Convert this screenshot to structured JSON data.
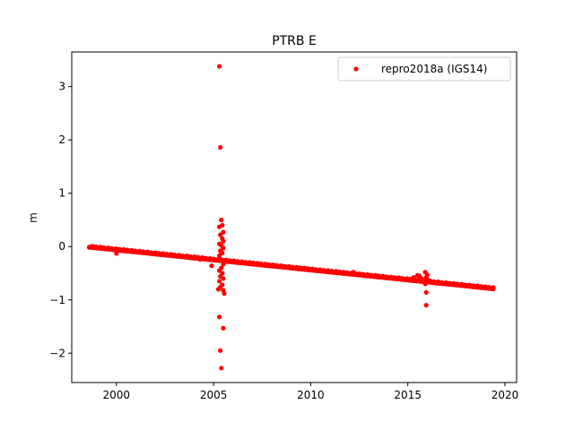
{
  "chart_data": {
    "type": "scatter",
    "title": "PTRB E",
    "xlabel": "",
    "ylabel": "m",
    "xlim": [
      1997.7,
      2020.6
    ],
    "ylim": [
      -2.55,
      3.65
    ],
    "xticks": [
      2000,
      2005,
      2010,
      2015,
      2020
    ],
    "yticks": [
      -2,
      -1,
      0,
      1,
      2,
      3
    ],
    "xtick_labels": [
      "2000",
      "2005",
      "2010",
      "2015",
      "2020"
    ],
    "ytick_labels": [
      "−2",
      "−1",
      "0",
      "1",
      "2",
      "3"
    ],
    "grid": false,
    "legend_position": "top-right",
    "series": [
      {
        "name": "repro2018a (IGS14)",
        "color": "#ff0000",
        "marker": "circle",
        "trend": {
          "x_start": 1998.6,
          "x_end": 2019.4,
          "y_start": 0.0,
          "y_end": -0.78
        },
        "points": [
          {
            "x": 2000.0,
            "y": -0.13
          },
          {
            "x": 2004.3,
            "y": -0.24
          },
          {
            "x": 2004.9,
            "y": -0.36
          },
          {
            "x": 2005.3,
            "y": 3.38
          },
          {
            "x": 2005.35,
            "y": 1.86
          },
          {
            "x": 2005.4,
            "y": 0.5
          },
          {
            "x": 2005.45,
            "y": 0.4
          },
          {
            "x": 2005.3,
            "y": 0.37
          },
          {
            "x": 2005.5,
            "y": 0.27
          },
          {
            "x": 2005.35,
            "y": 0.22
          },
          {
            "x": 2005.45,
            "y": 0.15
          },
          {
            "x": 2005.5,
            "y": 0.1
          },
          {
            "x": 2005.3,
            "y": 0.05
          },
          {
            "x": 2005.4,
            "y": 0.02
          },
          {
            "x": 2005.5,
            "y": -0.03
          },
          {
            "x": 2005.35,
            "y": -0.08
          },
          {
            "x": 2005.45,
            "y": -0.12
          },
          {
            "x": 2005.3,
            "y": -0.17
          },
          {
            "x": 2005.5,
            "y": -0.33
          },
          {
            "x": 2005.4,
            "y": -0.4
          },
          {
            "x": 2005.3,
            "y": -0.45
          },
          {
            "x": 2005.45,
            "y": -0.5
          },
          {
            "x": 2005.35,
            "y": -0.56
          },
          {
            "x": 2005.5,
            "y": -0.6
          },
          {
            "x": 2005.3,
            "y": -0.65
          },
          {
            "x": 2005.45,
            "y": -0.72
          },
          {
            "x": 2005.35,
            "y": -0.76
          },
          {
            "x": 2005.25,
            "y": -0.8
          },
          {
            "x": 2005.5,
            "y": -0.82
          },
          {
            "x": 2005.55,
            "y": -0.88
          },
          {
            "x": 2005.3,
            "y": -1.32
          },
          {
            "x": 2005.5,
            "y": -1.53
          },
          {
            "x": 2005.35,
            "y": -1.95
          },
          {
            "x": 2005.4,
            "y": -2.28
          },
          {
            "x": 2012.2,
            "y": -0.48
          },
          {
            "x": 2015.3,
            "y": -0.58
          },
          {
            "x": 2015.5,
            "y": -0.54
          },
          {
            "x": 2015.6,
            "y": -0.55
          },
          {
            "x": 2015.7,
            "y": -0.6
          },
          {
            "x": 2015.9,
            "y": -0.48
          },
          {
            "x": 2016.0,
            "y": -0.53
          },
          {
            "x": 2015.95,
            "y": -0.58
          },
          {
            "x": 2016.05,
            "y": -0.63
          },
          {
            "x": 2016.2,
            "y": -0.66
          },
          {
            "x": 2015.9,
            "y": -0.7
          },
          {
            "x": 2015.95,
            "y": -0.86
          },
          {
            "x": 2015.95,
            "y": -1.1
          }
        ]
      }
    ]
  }
}
